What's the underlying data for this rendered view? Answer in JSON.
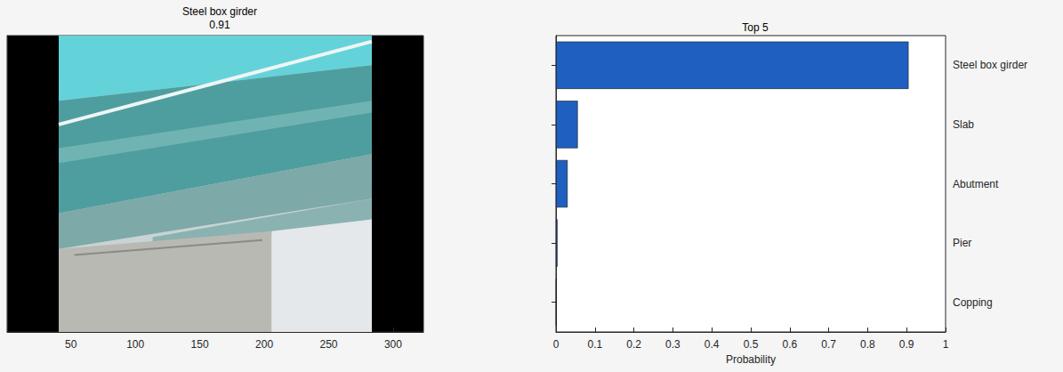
{
  "chart_data": [
    {
      "type": "image",
      "title": "Steel box girder",
      "subtitle": "0.91",
      "xlim": [
        0.5,
        323.5
      ],
      "xticks": [
        50,
        100,
        150,
        200,
        250,
        300
      ],
      "tick_labels": "x"
    },
    {
      "type": "bar",
      "orientation": "horizontal",
      "title": "Top 5",
      "x_label": "Probability",
      "categories": [
        "Steel box girder",
        "Slab",
        "Abutment",
        "Pier",
        "Copping"
      ],
      "values": [
        0.905,
        0.056,
        0.03,
        0.004,
        0.001
      ],
      "color": "#1f5fbf",
      "xlim": [
        0,
        1
      ],
      "xticks": [
        0,
        0.1,
        0.2,
        0.3,
        0.4,
        0.5,
        0.6,
        0.7,
        0.8,
        0.9,
        1
      ],
      "grid": false
    }
  ]
}
